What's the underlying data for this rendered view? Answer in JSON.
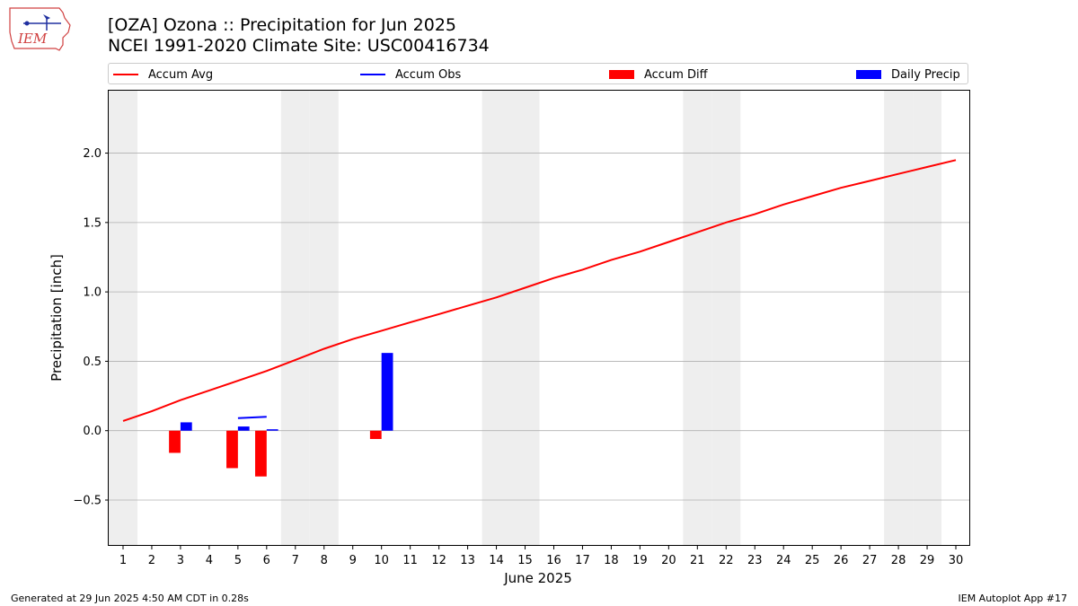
{
  "header": {
    "logo_text": "IEM",
    "title_line1": "[OZA] Ozona :: Precipitation for Jun 2025",
    "title_line2": "NCEI 1991-2020 Climate Site: USC00416734"
  },
  "footer": {
    "generated": "Generated at 29 Jun 2025 4:50 AM CDT in 0.28s",
    "app": "IEM Autoplot App #17"
  },
  "colors": {
    "accum_avg": "#ff0000",
    "accum_obs": "#0000ff",
    "accum_diff": "#ff0000",
    "daily_precip": "#0000ff",
    "weekend_band": "#eeeeee",
    "grid": "#b0b0b0"
  },
  "chart_data": {
    "type": "bar",
    "xlabel": "June 2025",
    "ylabel": "Precipitation [inch]",
    "xlim": [
      0.5,
      30.5
    ],
    "ylim": [
      -0.83,
      2.45
    ],
    "yticks": [
      -0.5,
      0.0,
      0.5,
      1.0,
      1.5,
      2.0
    ],
    "ytick_labels": [
      "−0.5",
      "0.0",
      "0.5",
      "1.0",
      "1.5",
      "2.0"
    ],
    "xticks": [
      1,
      2,
      3,
      4,
      5,
      6,
      7,
      8,
      9,
      10,
      11,
      12,
      13,
      14,
      15,
      16,
      17,
      18,
      19,
      20,
      21,
      22,
      23,
      24,
      25,
      26,
      27,
      28,
      29,
      30
    ],
    "grid": "horizontal",
    "legend_position": "top",
    "weekend_days": [
      1,
      7,
      8,
      14,
      15,
      21,
      22,
      28,
      29
    ],
    "series": [
      {
        "name": "Accum Avg",
        "kind": "line",
        "x": [
          1,
          2,
          3,
          4,
          5,
          6,
          7,
          8,
          9,
          10,
          11,
          12,
          13,
          14,
          15,
          16,
          17,
          18,
          19,
          20,
          21,
          22,
          23,
          24,
          25,
          26,
          27,
          28,
          29,
          30
        ],
        "values": [
          0.07,
          0.14,
          0.22,
          0.29,
          0.36,
          0.43,
          0.51,
          0.59,
          0.66,
          0.72,
          0.78,
          0.84,
          0.9,
          0.96,
          1.03,
          1.1,
          1.16,
          1.23,
          1.29,
          1.36,
          1.43,
          1.5,
          1.56,
          1.63,
          1.69,
          1.75,
          1.8,
          1.85,
          1.9,
          1.95
        ]
      },
      {
        "name": "Accum Obs",
        "kind": "line",
        "x": [
          5,
          6
        ],
        "values": [
          0.09,
          0.1
        ]
      },
      {
        "name": "Accum Diff",
        "kind": "bar",
        "x": [
          3,
          5,
          6,
          10
        ],
        "values": [
          -0.16,
          -0.27,
          -0.33,
          -0.06
        ]
      },
      {
        "name": "Daily Precip",
        "kind": "bar",
        "x": [
          3,
          5,
          6,
          10
        ],
        "values": [
          0.06,
          0.03,
          0.01,
          0.56
        ]
      }
    ]
  }
}
